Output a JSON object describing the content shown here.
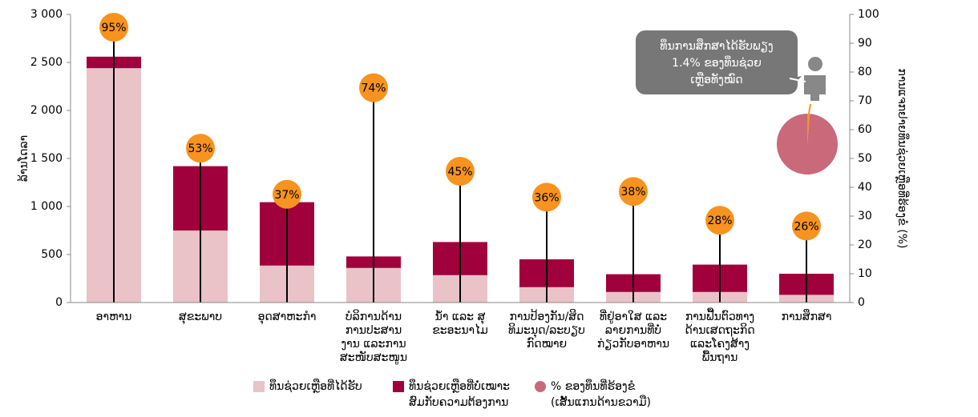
{
  "chart_data": {
    "type": "bar",
    "ylabel": "ລ້ານໂດລາ",
    "y2label": "ການແຈກຢາຍທຶນຊ່ວຍເຫຼືອທີ່ຮ້ອງຂໍ (%)",
    "categories": [
      [
        "ອາຫານ"
      ],
      [
        "ສຸຂະພາບ"
      ],
      [
        "ອຸດສາຫະກໍາ"
      ],
      [
        "ບໍລິການດ້ານ",
        "ການປະສານ",
        "ງານ ແລະການ",
        "ສະໜັບສະໜູນ"
      ],
      [
        "ນ້ຳ ແລະ ສຸ",
        "ຂະອະນາໄມ"
      ],
      [
        "ການປ້ອງກັນ/ສິດ",
        "ທິມະນຸດ/ລະບຽບ",
        "ກົດໝາຍ"
      ],
      [
        "ທີ່ຢູ່ອາໃສ ແລະ",
        "ລາຍການທີ່ບໍ່",
        "ກ່ຽວກັບອາຫານ"
      ],
      [
        "ການຟື້ນຕົວທາງ",
        "ດ້ານເສດຖະກິດ",
        "ແລະໂຄງສ້າງ",
        "ພື້ນຖານ"
      ],
      [
        "ການສຶກສາ"
      ]
    ],
    "series": [
      {
        "name": "ທຶນຊ່ວຍເຫຼືອທີ່ໄດ້ຮັບ",
        "color": "#e9c3c8",
        "values": [
          2440,
          750,
          385,
          360,
          285,
          160,
          110,
          110,
          80
        ]
      },
      {
        "name": [
          "ທຶນຊ່ວຍເຫຼືອທີ່ບໍ່ເໝາະ",
          "ສົມກັບຄວາມຕ້ອງການ"
        ],
        "color": "#a0003c",
        "values": [
          120,
          670,
          660,
          120,
          345,
          290,
          185,
          285,
          220
        ]
      },
      {
        "name": [
          "% ຂອງທຶນທີ່ຮ້ອງຂໍ",
          "(ເສັ້ນແກນດ້ານຂວາມື)"
        ],
        "type": "lollipop",
        "axis": "y2",
        "color": "#f7931e",
        "legend_color": "#c9697a",
        "values": [
          95,
          53,
          37,
          74,
          45,
          36,
          38,
          28,
          26
        ],
        "value_labels": [
          "95%",
          "53%",
          "37%",
          "74%",
          "45%",
          "36%",
          "38%",
          "28%",
          "26%"
        ]
      }
    ],
    "ylim": [
      0,
      3000
    ],
    "yticks": [
      0,
      500,
      {
        "value": 1000,
        "label": "1 000"
      },
      {
        "value": 1500,
        "label": "1 500"
      },
      {
        "value": 2000,
        "label": "2 000"
      },
      {
        "value": 2500,
        "label": "2 500"
      },
      {
        "value": 3000,
        "label": "3 000"
      }
    ],
    "y2lim": [
      0,
      100
    ],
    "y2ticks": [
      0,
      10,
      20,
      30,
      40,
      50,
      60,
      70,
      80,
      90,
      100
    ],
    "annotation": [
      "ທຶນການສຶກສາໄດ້ຮັບພຽງ",
      "1.4% ຂອງທຶນຊ່ວຍ",
      "ເຫຼືອທັງໝົດ"
    ],
    "inset": {
      "type": "pie",
      "values": [
        1.4,
        98.6
      ],
      "colors": [
        "#f7931e",
        "#c9697a"
      ]
    }
  }
}
